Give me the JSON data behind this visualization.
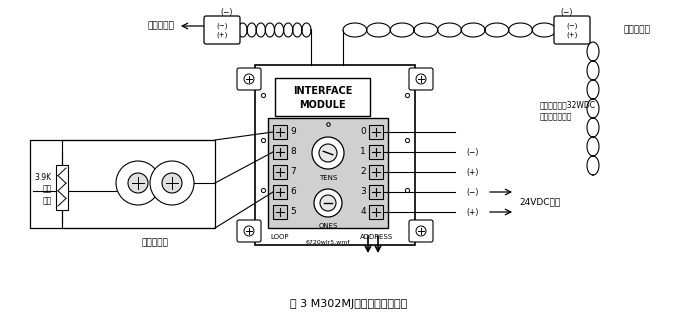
{
  "title": "图 3 M302MJ非环形接线示意图",
  "bg_color": "#ffffff",
  "line_color": "#000000",
  "module_label1": "INTERFACE",
  "module_label2": "MODULE",
  "loop_label": "LOOP",
  "address_label": "ADDRESS",
  "tens_label": "TENS",
  "ones_label": "ONES",
  "left_label": "下一个设备",
  "right_label": "前一个设备",
  "detector_label": "普通探测器",
  "resistor_label1": "3.9K",
  "resistor_label2": "终端",
  "resistor_label3": "电阻",
  "power_label": "24VDC电源",
  "note_label1": "回路最高电压32WDC",
  "note_label2": "建议使用双绞线",
  "loop_numbers_left": [
    "9",
    "8",
    "7",
    "6",
    "5"
  ],
  "address_numbers_right": [
    "0",
    "1",
    "2",
    "3",
    "4"
  ],
  "filename_label": "6720wlr5.wmf",
  "minus_sign": "(−)",
  "plus_sign": "(+)",
  "figw": 6.97,
  "figh": 3.16,
  "dpi": 100
}
